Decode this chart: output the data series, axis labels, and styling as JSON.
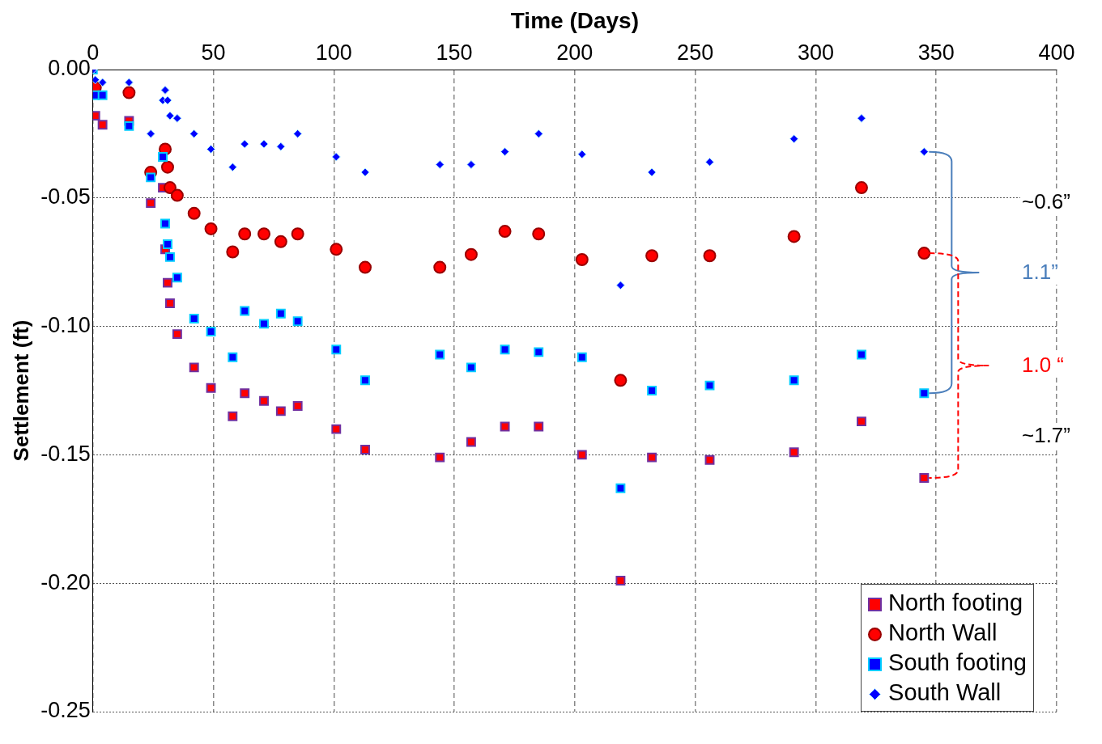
{
  "chart_data": {
    "type": "scatter",
    "xlabel": "Time (Days)",
    "ylabel": "Settlement (ft)",
    "xlim": [
      0,
      400
    ],
    "xticks": [
      0,
      50,
      100,
      150,
      200,
      250,
      300,
      350,
      400
    ],
    "ylim": [
      -0.25,
      0
    ],
    "yticks": [
      {
        "value": 0,
        "label": "0.00"
      },
      {
        "value": -0.05,
        "label": "-0.05"
      },
      {
        "value": -0.1,
        "label": "-0.10"
      },
      {
        "value": -0.15,
        "label": "-0.15"
      },
      {
        "value": -0.2,
        "label": "-0.20"
      },
      {
        "value": -0.25,
        "label": "-0.25"
      }
    ],
    "grid": true,
    "legend": "bottom right",
    "annotations": [
      "~0.6”",
      "1.1”",
      "1.0 “",
      "~1.7”"
    ],
    "series": [
      {
        "name": "North footing",
        "color": "#ff0000",
        "marker": "square",
        "x": [
          1,
          4,
          15,
          24,
          29,
          30,
          31,
          32,
          35,
          42,
          49,
          58,
          63,
          71,
          78,
          85,
          101,
          113,
          144,
          157,
          171,
          185,
          203,
          219,
          232,
          256,
          291,
          319,
          345
        ],
        "values": [
          -0.018,
          -0.0215,
          -0.02,
          -0.052,
          -0.046,
          -0.07,
          -0.083,
          -0.091,
          -0.103,
          -0.116,
          -0.124,
          -0.135,
          -0.126,
          -0.129,
          -0.133,
          -0.131,
          -0.14,
          -0.148,
          -0.151,
          -0.145,
          -0.139,
          -0.139,
          -0.15,
          -0.199,
          -0.151,
          -0.152,
          -0.149,
          -0.137,
          -0.159
        ]
      },
      {
        "name": "North Wall",
        "color": "#ff0000",
        "marker": "circle",
        "x": [
          1,
          15,
          24,
          30,
          31,
          32,
          35,
          42,
          49,
          58,
          63,
          71,
          78,
          85,
          101,
          113,
          144,
          157,
          171,
          185,
          203,
          219,
          232,
          256,
          291,
          319,
          345
        ],
        "values": [
          -0.007,
          -0.009,
          -0.04,
          -0.031,
          -0.038,
          -0.046,
          -0.049,
          -0.056,
          -0.062,
          -0.071,
          -0.064,
          -0.064,
          -0.067,
          -0.064,
          -0.07,
          -0.077,
          -0.077,
          -0.072,
          -0.063,
          -0.064,
          -0.074,
          -0.121,
          -0.0725,
          -0.0725,
          -0.065,
          -0.046,
          -0.0715
        ]
      },
      {
        "name": "South footing",
        "color": "#0000ff",
        "marker": "square",
        "x": [
          0,
          1,
          4,
          15,
          24,
          29,
          30,
          31,
          32,
          35,
          42,
          49,
          58,
          63,
          71,
          78,
          85,
          101,
          113,
          144,
          157,
          171,
          185,
          203,
          219,
          232,
          256,
          291,
          319,
          345
        ],
        "values": [
          0,
          -0.01,
          -0.01,
          -0.022,
          -0.042,
          -0.034,
          -0.06,
          -0.068,
          -0.073,
          -0.081,
          -0.097,
          -0.102,
          -0.112,
          -0.094,
          -0.099,
          -0.095,
          -0.098,
          -0.109,
          -0.121,
          -0.111,
          -0.116,
          -0.109,
          -0.11,
          -0.112,
          -0.163,
          -0.125,
          -0.123,
          -0.121,
          -0.111,
          -0.126
        ]
      },
      {
        "name": "South Wall",
        "color": "#0000ff",
        "marker": "diamond",
        "x": [
          0,
          1,
          4,
          15,
          24,
          29,
          30,
          31,
          32,
          35,
          42,
          49,
          58,
          63,
          71,
          78,
          85,
          101,
          113,
          144,
          157,
          171,
          185,
          203,
          219,
          232,
          256,
          291,
          319,
          345
        ],
        "values": [
          0,
          -0.004,
          -0.005,
          -0.005,
          -0.025,
          -0.012,
          -0.008,
          -0.012,
          -0.018,
          -0.019,
          -0.025,
          -0.031,
          -0.038,
          -0.029,
          -0.029,
          -0.03,
          -0.025,
          -0.034,
          -0.04,
          -0.037,
          -0.037,
          -0.032,
          -0.025,
          -0.033,
          -0.084,
          -0.04,
          -0.036,
          -0.027,
          -0.019,
          -0.032
        ]
      }
    ]
  }
}
